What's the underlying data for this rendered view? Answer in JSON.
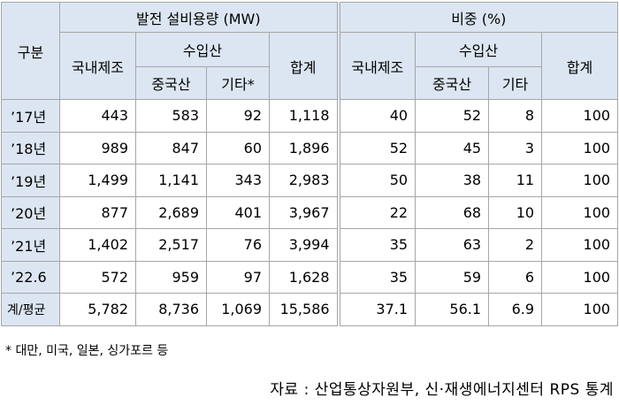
{
  "header": {
    "row_label": "구분",
    "capacity": {
      "title": "발전 설비용량 (MW)",
      "domestic": "국내제조",
      "imported": "수입산",
      "china": "중국산",
      "other": "기타*",
      "total": "합계"
    },
    "share": {
      "title": "비중 (%)",
      "domestic": "국내제조",
      "imported": "수입산",
      "china": "중국산",
      "other": "기타",
      "total": "합계"
    }
  },
  "table": {
    "rows": [
      [
        "’17년",
        "443",
        "583",
        "92",
        "1,118",
        "40",
        "52",
        "8",
        "100"
      ],
      [
        "’18년",
        "989",
        "847",
        "60",
        "1,896",
        "52",
        "45",
        "3",
        "100"
      ],
      [
        "’19년",
        "1,499",
        "1,141",
        "343",
        "2,983",
        "50",
        "38",
        "11",
        "100"
      ],
      [
        "’20년",
        "877",
        "2,689",
        "401",
        "3,967",
        "22",
        "68",
        "10",
        "100"
      ],
      [
        "’21년",
        "1,402",
        "2,517",
        "76",
        "3,994",
        "35",
        "63",
        "2",
        "100"
      ],
      [
        "’22.6",
        "572",
        "959",
        "97",
        "1,628",
        "35",
        "59",
        "6",
        "100"
      ],
      [
        "계/평균",
        "5,782",
        "8,736",
        "1,069",
        "15,586",
        "37.1",
        "56.1",
        "6.9",
        "100"
      ]
    ]
  },
  "footnote": "* 대만, 미국, 일본, 싱가포르 등",
  "source": "자료 : 산업통상자원부, 신·재생에너지센터 RPS 통계"
}
